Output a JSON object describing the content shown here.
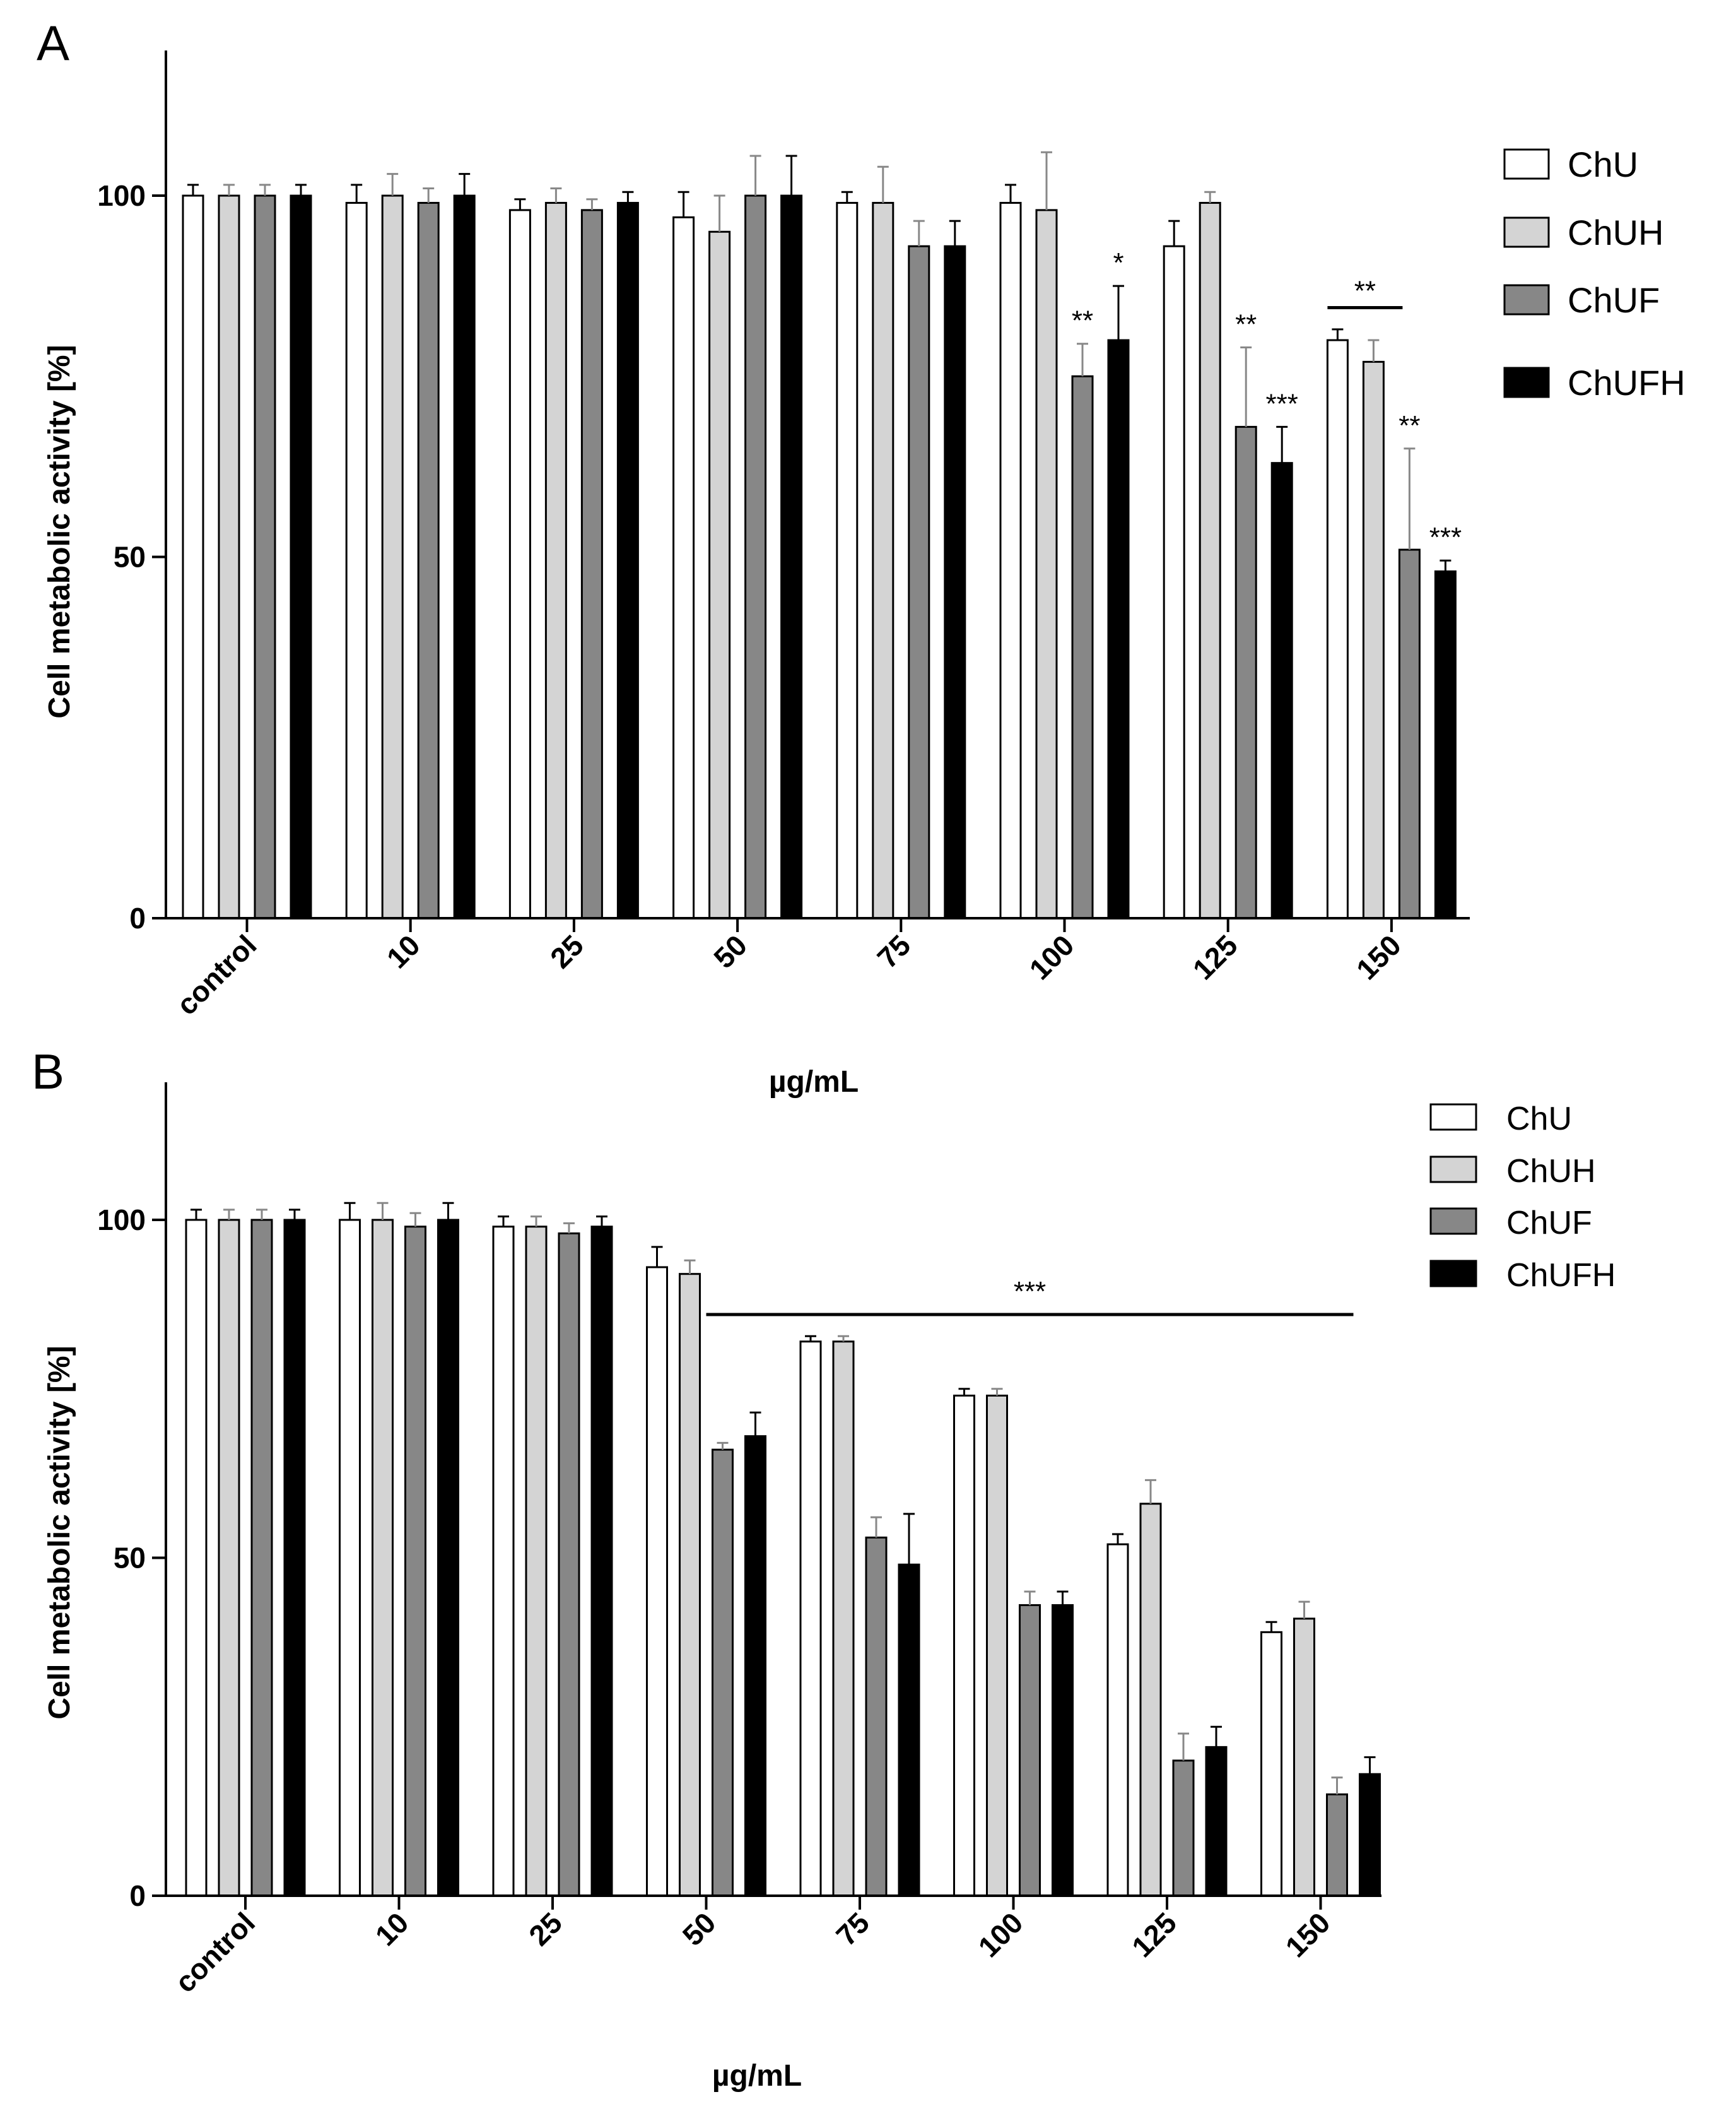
{
  "chart_data": [
    {
      "panel": "A",
      "type": "bar",
      "xlabel": "µg/mL",
      "ylabel": "Cell metabolic activity [%]",
      "ylim": [
        0,
        120
      ],
      "yticks": [
        0,
        50,
        100
      ],
      "categories": [
        "control",
        "10",
        "25",
        "50",
        "75",
        "100",
        "125",
        "150"
      ],
      "series": [
        {
          "name": "ChU",
          "color": "#ffffff",
          "values": [
            100,
            99,
            98,
            97,
            99,
            99,
            93,
            80
          ],
          "errors": [
            1.5,
            2.5,
            1.5,
            3.5,
            1.5,
            2.5,
            3.5,
            1.5
          ]
        },
        {
          "name": "ChUH",
          "color": "#d4d4d4",
          "values": [
            100,
            100,
            99,
            95,
            99,
            98,
            99,
            77
          ],
          "errors": [
            1.5,
            3,
            2,
            5,
            5,
            8,
            1.5,
            3
          ]
        },
        {
          "name": "ChUF",
          "color": "#878787",
          "values": [
            100,
            99,
            98,
            100,
            93,
            75,
            68,
            51
          ],
          "errors": [
            1.5,
            2,
            1.5,
            5.5,
            3.5,
            4.5,
            11,
            14
          ]
        },
        {
          "name": "ChUFH",
          "color": "#000000",
          "values": [
            100,
            100,
            99,
            100,
            93,
            80,
            63,
            48
          ],
          "errors": [
            1.5,
            3,
            1.5,
            5.5,
            3.5,
            7.5,
            5,
            1.5
          ]
        }
      ],
      "annotations": [
        {
          "category": "100",
          "series": "ChUF",
          "text": "**"
        },
        {
          "category": "100",
          "series": "ChUFH",
          "text": "*"
        },
        {
          "category": "125",
          "series": "ChUF",
          "text": "**"
        },
        {
          "category": "125",
          "series": "ChUFH",
          "text": "***"
        },
        {
          "category": "150",
          "series": "ChUF",
          "text": "**"
        },
        {
          "category": "150",
          "series": "ChUFH",
          "text": "***"
        },
        {
          "category": "150",
          "span": [
            "ChU",
            "ChUH"
          ],
          "text": "**"
        }
      ]
    },
    {
      "panel": "B",
      "type": "bar",
      "xlabel": "µg/mL",
      "ylabel": "Cell metabolic activity [%]",
      "ylim": [
        0,
        120
      ],
      "yticks": [
        0,
        50,
        100
      ],
      "categories": [
        "control",
        "10",
        "25",
        "50",
        "75",
        "100",
        "125",
        "150"
      ],
      "series": [
        {
          "name": "ChU",
          "color": "#ffffff",
          "values": [
            100,
            100,
            99,
            93,
            82,
            74,
            52,
            39
          ],
          "errors": [
            1.5,
            2.5,
            1.5,
            3,
            0.8,
            1,
            1.5,
            1.5
          ]
        },
        {
          "name": "ChUH",
          "color": "#d4d4d4",
          "values": [
            100,
            100,
            99,
            92,
            82,
            74,
            58,
            41
          ],
          "errors": [
            1.5,
            2.5,
            1.5,
            2,
            0.8,
            1,
            3.5,
            2.5
          ]
        },
        {
          "name": "ChUF",
          "color": "#878787",
          "values": [
            100,
            99,
            98,
            66,
            53,
            43,
            20,
            15
          ],
          "errors": [
            1.5,
            2,
            1.5,
            1,
            3,
            2,
            4,
            2.5
          ]
        },
        {
          "name": "ChUFH",
          "color": "#000000",
          "values": [
            100,
            100,
            99,
            68,
            49,
            43,
            22,
            18
          ],
          "errors": [
            1.5,
            2.5,
            1.5,
            3.5,
            7.5,
            2,
            3,
            2.5
          ]
        }
      ],
      "annotations": [
        {
          "span_categories": [
            "50",
            "150"
          ],
          "text": "***"
        }
      ]
    }
  ]
}
